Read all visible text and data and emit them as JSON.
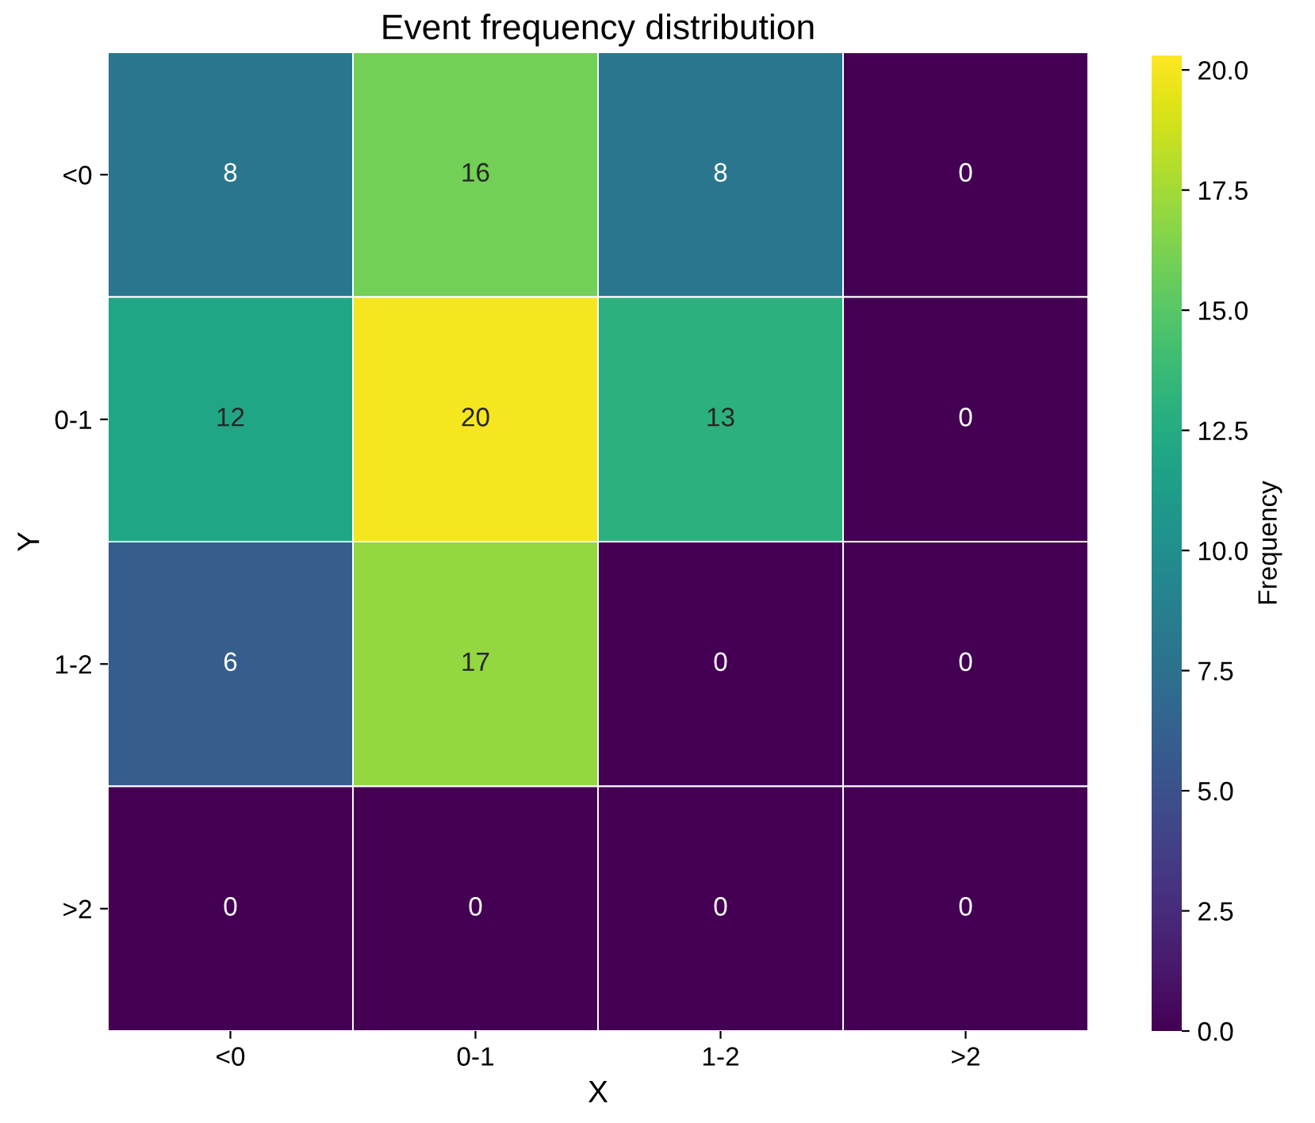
{
  "chart_data": {
    "type": "heatmap",
    "title": "Event frequency distribution",
    "xlabel": "X",
    "ylabel": "Y",
    "clabel": "Frequency",
    "categories": [
      "<0",
      "0-1",
      "1-2",
      ">2"
    ],
    "y_categories": [
      "<0",
      "0-1",
      "1-2",
      ">2"
    ],
    "cells": [
      [
        8,
        16,
        8,
        0
      ],
      [
        12,
        20,
        13,
        0
      ],
      [
        6,
        17,
        0,
        0
      ],
      [
        0,
        0,
        0,
        0
      ]
    ],
    "clim": [
      0,
      20.3
    ],
    "cticks": [
      {
        "value": 0,
        "label": "0.0"
      },
      {
        "value": 2.5,
        "label": "2.5"
      },
      {
        "value": 5,
        "label": "5.0"
      },
      {
        "value": 7.5,
        "label": "7.5"
      },
      {
        "value": 10,
        "label": "10.0"
      },
      {
        "value": 12.5,
        "label": "12.5"
      },
      {
        "value": 15,
        "label": "15.0"
      },
      {
        "value": 17.5,
        "label": "17.5"
      },
      {
        "value": 20,
        "label": "20.0"
      }
    ],
    "data_labels": true
  }
}
